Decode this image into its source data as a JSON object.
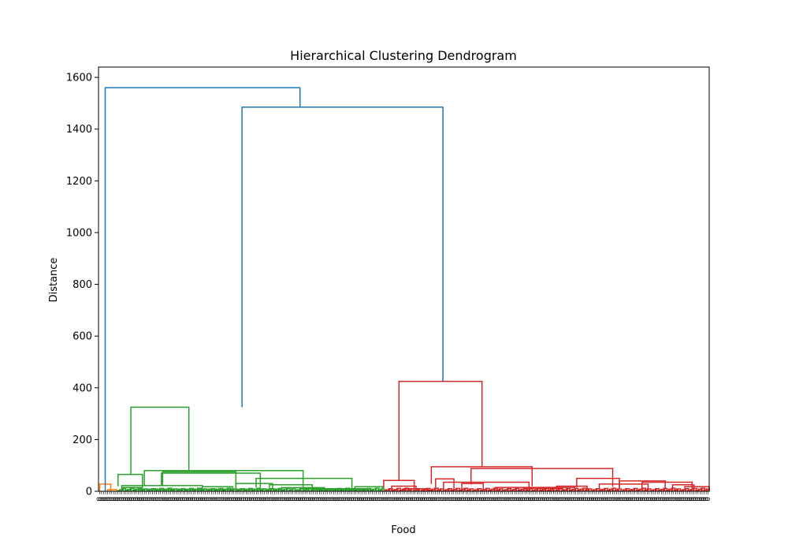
{
  "chart_data": {
    "type": "dendrogram",
    "title": "Hierarchical Clustering Dendrogram",
    "xlabel": "Food",
    "ylabel": "Distance",
    "ylim": [
      0,
      1640
    ],
    "yticks": [
      0,
      200,
      400,
      600,
      800,
      1000,
      1200,
      1400,
      1600
    ],
    "grid": false,
    "colors": {
      "top": "#1f77b4",
      "cluster_orange": "#ff7f0e",
      "cluster_green": "#2ca02c",
      "cluster_red": "#d62728"
    },
    "leaf_tick_labels": "0",
    "leaf_count": 300,
    "merges": [
      {
        "xl": 1,
        "xr": 2,
        "h": 1560,
        "x1": 0.15,
        "x2": 1.0,
        "color": "top"
      },
      {
        "xl": 1.0,
        "xr": 2.0,
        "h": 1485,
        "x1": 0.235,
        "x2": 0.564,
        "color": "top"
      },
      {
        "h": 325,
        "x1": 0.053,
        "x2": 0.148,
        "color": "cluster_green"
      },
      {
        "h": 425,
        "x1": 0.492,
        "x2": 0.628,
        "color": "cluster_red"
      },
      {
        "h": 28,
        "x1": 0.002,
        "x2": 0.02,
        "color": "cluster_orange"
      }
    ],
    "green_merges": [
      [
        0.032,
        0.072,
        65
      ],
      [
        0.075,
        0.335,
        80
      ],
      [
        0.105,
        0.225,
        75
      ],
      [
        0.103,
        0.265,
        70
      ],
      [
        0.258,
        0.415,
        50
      ],
      [
        0.225,
        0.285,
        30
      ],
      [
        0.28,
        0.35,
        25
      ],
      [
        0.038,
        0.17,
        22
      ],
      [
        0.17,
        0.22,
        18
      ],
      [
        0.04,
        0.07,
        15
      ],
      [
        0.3,
        0.37,
        14
      ],
      [
        0.33,
        0.44,
        10
      ],
      [
        0.06,
        0.3,
        8
      ],
      [
        0.36,
        0.45,
        6
      ],
      [
        0.42,
        0.465,
        18
      ]
    ],
    "red_merges": [
      [
        0.467,
        0.517,
        42
      ],
      [
        0.545,
        0.71,
        95
      ],
      [
        0.61,
        0.842,
        88
      ],
      [
        0.783,
        0.853,
        50
      ],
      [
        0.853,
        0.928,
        40
      ],
      [
        0.89,
        0.972,
        35
      ],
      [
        0.552,
        0.582,
        48
      ],
      [
        0.565,
        0.705,
        35
      ],
      [
        0.595,
        0.63,
        30
      ],
      [
        0.75,
        0.8,
        20
      ],
      [
        0.65,
        0.78,
        15
      ],
      [
        0.82,
        0.9,
        28
      ],
      [
        0.94,
        0.975,
        25
      ],
      [
        0.7,
        0.76,
        12
      ],
      [
        0.5,
        0.54,
        10
      ],
      [
        0.96,
        1.0,
        18
      ],
      [
        0.48,
        0.52,
        20
      ]
    ]
  }
}
